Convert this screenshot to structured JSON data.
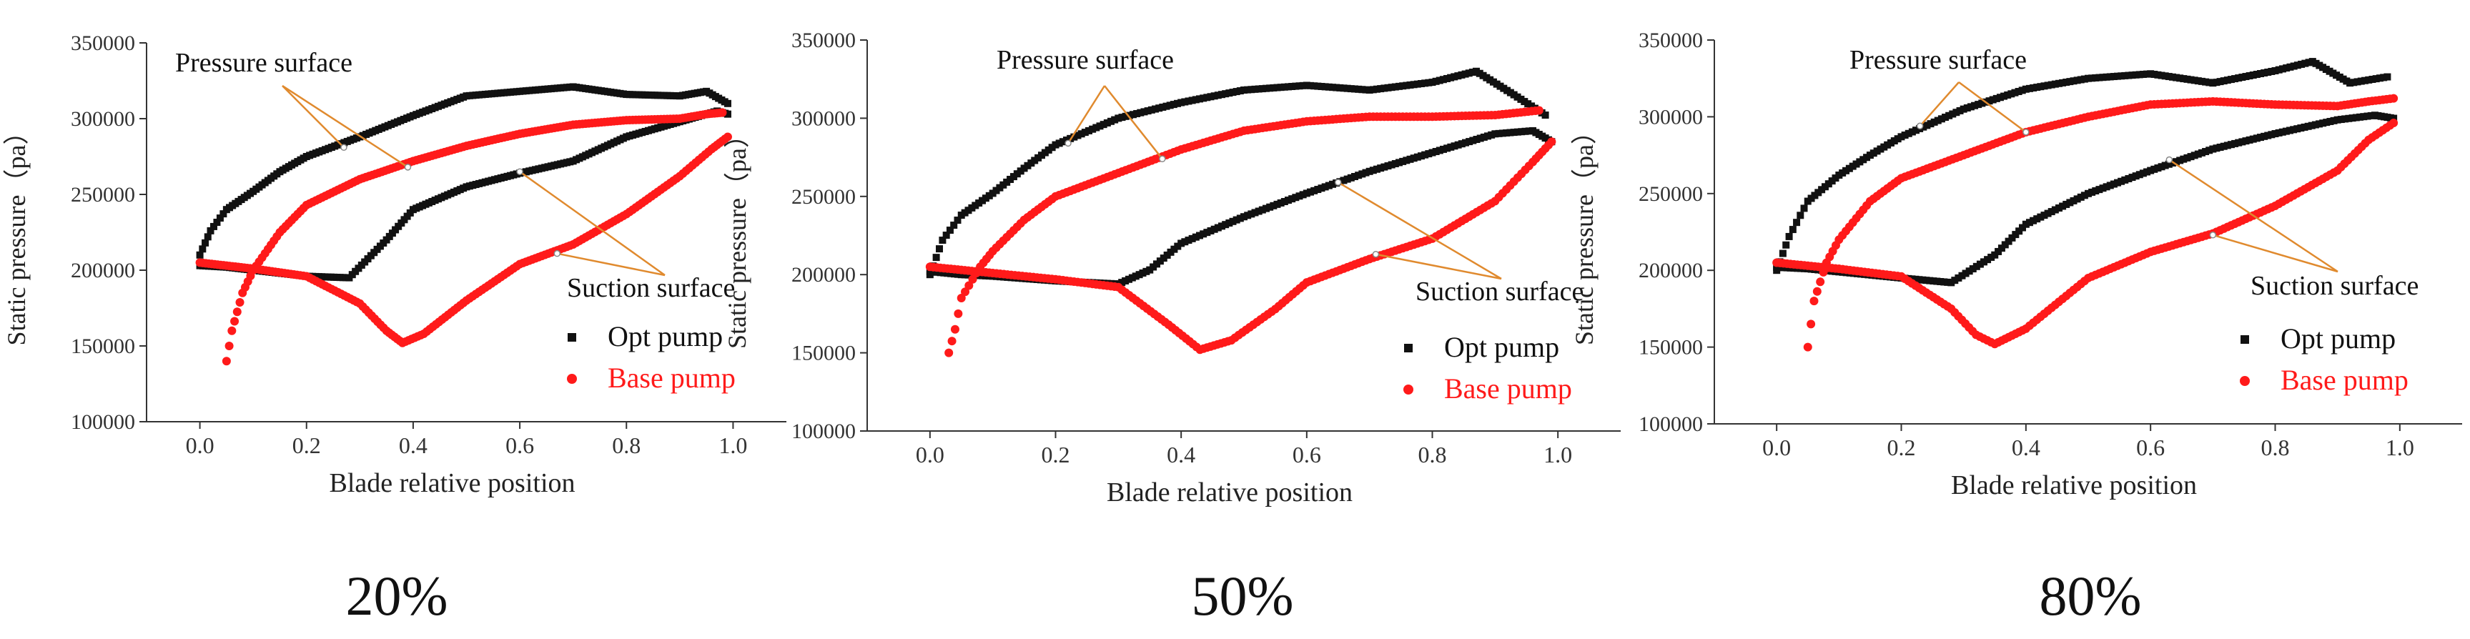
{
  "figure": {
    "panel_labels": [
      "20%",
      "50%",
      "80%"
    ]
  },
  "colors": {
    "opt": "#111111",
    "base": "#ff1a1a",
    "annotation": "#e08a2e",
    "axis": "#333333"
  },
  "chart_data": [
    {
      "type": "scatter",
      "panel_label": "20%",
      "xlabel": "Blade relative position",
      "ylabel": "Static pressure（pa）",
      "xlim": [
        -0.1,
        1.1
      ],
      "ylim": [
        100000,
        350000
      ],
      "xticks": [
        0.0,
        0.2,
        0.4,
        0.6,
        0.8,
        1.0
      ],
      "xtick_labels": [
        "0.0",
        "0.2",
        "0.4",
        "0.6",
        "0.8",
        "1.0"
      ],
      "yticks": [
        100000,
        150000,
        200000,
        250000,
        300000,
        350000
      ],
      "ytick_labels": [
        "100000",
        "150000",
        "200000",
        "250000",
        "300000",
        "350000"
      ],
      "legend": {
        "position": "right",
        "entries": [
          "Opt pump",
          "Base pump"
        ]
      },
      "annotations": [
        {
          "text": "Pressure surface",
          "targets": [
            [
              0.27,
              281000
            ],
            [
              0.39,
              268000
            ]
          ]
        },
        {
          "text": "Suction surface",
          "targets": [
            [
              0.6,
              265000
            ],
            [
              0.67,
              211000
            ]
          ]
        }
      ],
      "series": [
        {
          "name": "Opt pump",
          "surface": "pressure",
          "x": [
            0.0,
            0.02,
            0.05,
            0.1,
            0.15,
            0.2,
            0.3,
            0.4,
            0.5,
            0.6,
            0.7,
            0.8,
            0.9,
            0.95,
            0.99
          ],
          "y": [
            210000,
            226000,
            240000,
            252000,
            265000,
            275000,
            288000,
            302000,
            315000,
            318000,
            321000,
            316000,
            315000,
            318000,
            310000
          ]
        },
        {
          "name": "Opt pump",
          "surface": "suction",
          "x": [
            0.0,
            0.05,
            0.1,
            0.2,
            0.28,
            0.35,
            0.4,
            0.5,
            0.6,
            0.7,
            0.8,
            0.9,
            0.97,
            0.99
          ],
          "y": [
            203000,
            202000,
            200000,
            196000,
            195000,
            220000,
            240000,
            255000,
            264000,
            272000,
            288000,
            298000,
            305000,
            303000
          ]
        },
        {
          "name": "Base pump",
          "surface": "pressure",
          "x": [
            0.05,
            0.06,
            0.08,
            0.1,
            0.15,
            0.2,
            0.3,
            0.4,
            0.5,
            0.6,
            0.7,
            0.8,
            0.9,
            0.95,
            0.98
          ],
          "y": [
            140000,
            160000,
            185000,
            200000,
            225000,
            243000,
            260000,
            272000,
            282000,
            290000,
            296000,
            299000,
            300000,
            303000,
            304000
          ]
        },
        {
          "name": "Base pump",
          "surface": "suction",
          "x": [
            0.0,
            0.05,
            0.1,
            0.2,
            0.3,
            0.35,
            0.38,
            0.42,
            0.5,
            0.6,
            0.7,
            0.8,
            0.9,
            0.96,
            0.99
          ],
          "y": [
            205000,
            203000,
            201000,
            196000,
            178000,
            160000,
            152000,
            158000,
            180000,
            204000,
            217000,
            237000,
            262000,
            280000,
            288000
          ]
        }
      ]
    },
    {
      "type": "scatter",
      "panel_label": "50%",
      "xlabel": "Blade relative position",
      "ylabel": "Static pressure（pa）",
      "xlim": [
        -0.1,
        1.1
      ],
      "ylim": [
        100000,
        350000
      ],
      "xticks": [
        0.0,
        0.2,
        0.4,
        0.6,
        0.8,
        1.0
      ],
      "xtick_labels": [
        "0.0",
        "0.2",
        "0.4",
        "0.6",
        "0.8",
        "1.0"
      ],
      "yticks": [
        100000,
        150000,
        200000,
        250000,
        300000,
        350000
      ],
      "ytick_labels": [
        "100000",
        "150000",
        "200000",
        "250000",
        "300000",
        "350000"
      ],
      "legend": {
        "position": "right",
        "entries": [
          "Opt pump",
          "Base pump"
        ]
      },
      "annotations": [
        {
          "text": "Pressure surface",
          "targets": [
            [
              0.22,
              284000
            ],
            [
              0.37,
              274000
            ]
          ]
        },
        {
          "text": "Suction surface",
          "targets": [
            [
              0.65,
              259000
            ],
            [
              0.71,
              213000
            ]
          ]
        }
      ],
      "series": [
        {
          "name": "Opt pump",
          "surface": "pressure",
          "x": [
            0.0,
            0.02,
            0.05,
            0.1,
            0.15,
            0.2,
            0.3,
            0.4,
            0.5,
            0.6,
            0.7,
            0.8,
            0.87,
            0.93,
            0.98
          ],
          "y": [
            200000,
            222000,
            238000,
            252000,
            268000,
            283000,
            300000,
            310000,
            318000,
            321000,
            318000,
            323000,
            330000,
            315000,
            302000
          ]
        },
        {
          "name": "Opt pump",
          "surface": "suction",
          "x": [
            0.0,
            0.05,
            0.1,
            0.2,
            0.3,
            0.35,
            0.4,
            0.5,
            0.6,
            0.7,
            0.8,
            0.9,
            0.96,
            0.99
          ],
          "y": [
            202000,
            200000,
            199000,
            196000,
            194000,
            203000,
            220000,
            237000,
            252000,
            266000,
            278000,
            290000,
            292000,
            285000
          ]
        },
        {
          "name": "Base pump",
          "surface": "pressure",
          "x": [
            0.03,
            0.04,
            0.05,
            0.08,
            0.1,
            0.15,
            0.2,
            0.3,
            0.4,
            0.5,
            0.6,
            0.7,
            0.8,
            0.9,
            0.97
          ],
          "y": [
            150000,
            165000,
            185000,
            205000,
            215000,
            235000,
            250000,
            265000,
            280000,
            292000,
            298000,
            301000,
            301000,
            302000,
            305000
          ]
        },
        {
          "name": "Base pump",
          "surface": "suction",
          "x": [
            0.0,
            0.05,
            0.1,
            0.2,
            0.3,
            0.38,
            0.43,
            0.48,
            0.55,
            0.6,
            0.7,
            0.8,
            0.9,
            0.96,
            0.99
          ],
          "y": [
            205000,
            203000,
            201000,
            197000,
            192000,
            168000,
            152000,
            158000,
            178000,
            195000,
            210000,
            223000,
            247000,
            272000,
            285000
          ]
        }
      ]
    },
    {
      "type": "scatter",
      "panel_label": "80%",
      "xlabel": "Blade relative position",
      "ylabel": "Static pressure（pa）",
      "xlim": [
        -0.1,
        1.1
      ],
      "ylim": [
        100000,
        350000
      ],
      "xticks": [
        0.0,
        0.2,
        0.4,
        0.6,
        0.8,
        1.0
      ],
      "xtick_labels": [
        "0.0",
        "0.2",
        "0.4",
        "0.6",
        "0.8",
        "1.0"
      ],
      "yticks": [
        100000,
        150000,
        200000,
        250000,
        300000,
        350000
      ],
      "ytick_labels": [
        "100000",
        "150000",
        "200000",
        "250000",
        "300000",
        "350000"
      ],
      "legend": {
        "position": "right",
        "entries": [
          "Opt pump",
          "Base pump"
        ]
      },
      "annotations": [
        {
          "text": "Pressure surface",
          "targets": [
            [
              0.23,
              294000
            ],
            [
              0.4,
              290000
            ]
          ]
        },
        {
          "text": "Suction surface",
          "targets": [
            [
              0.63,
              272000
            ],
            [
              0.7,
              223000
            ]
          ]
        }
      ],
      "series": [
        {
          "name": "Opt pump",
          "surface": "pressure",
          "x": [
            0.0,
            0.02,
            0.05,
            0.1,
            0.15,
            0.2,
            0.3,
            0.4,
            0.5,
            0.6,
            0.7,
            0.8,
            0.86,
            0.92,
            0.98
          ],
          "y": [
            200000,
            222000,
            245000,
            262000,
            275000,
            287000,
            305000,
            318000,
            325000,
            328000,
            322000,
            330000,
            336000,
            322000,
            326000
          ]
        },
        {
          "name": "Opt pump",
          "surface": "suction",
          "x": [
            0.0,
            0.05,
            0.1,
            0.2,
            0.28,
            0.35,
            0.4,
            0.5,
            0.6,
            0.7,
            0.8,
            0.9,
            0.96,
            0.99
          ],
          "y": [
            202000,
            201000,
            199000,
            195000,
            192000,
            210000,
            230000,
            250000,
            265000,
            279000,
            289000,
            298000,
            301000,
            299000
          ]
        },
        {
          "name": "Base pump",
          "surface": "pressure",
          "x": [
            0.05,
            0.06,
            0.08,
            0.1,
            0.15,
            0.2,
            0.3,
            0.4,
            0.5,
            0.6,
            0.7,
            0.8,
            0.9,
            0.95,
            0.99
          ],
          "y": [
            150000,
            180000,
            205000,
            220000,
            245000,
            260000,
            275000,
            290000,
            300000,
            308000,
            310000,
            308000,
            307000,
            310000,
            312000
          ]
        },
        {
          "name": "Base pump",
          "surface": "suction",
          "x": [
            0.0,
            0.05,
            0.1,
            0.2,
            0.28,
            0.32,
            0.35,
            0.4,
            0.5,
            0.6,
            0.7,
            0.8,
            0.9,
            0.95,
            0.99
          ],
          "y": [
            205000,
            203000,
            201000,
            196000,
            175000,
            158000,
            152000,
            162000,
            195000,
            212000,
            224000,
            242000,
            265000,
            285000,
            296000
          ]
        }
      ]
    }
  ]
}
